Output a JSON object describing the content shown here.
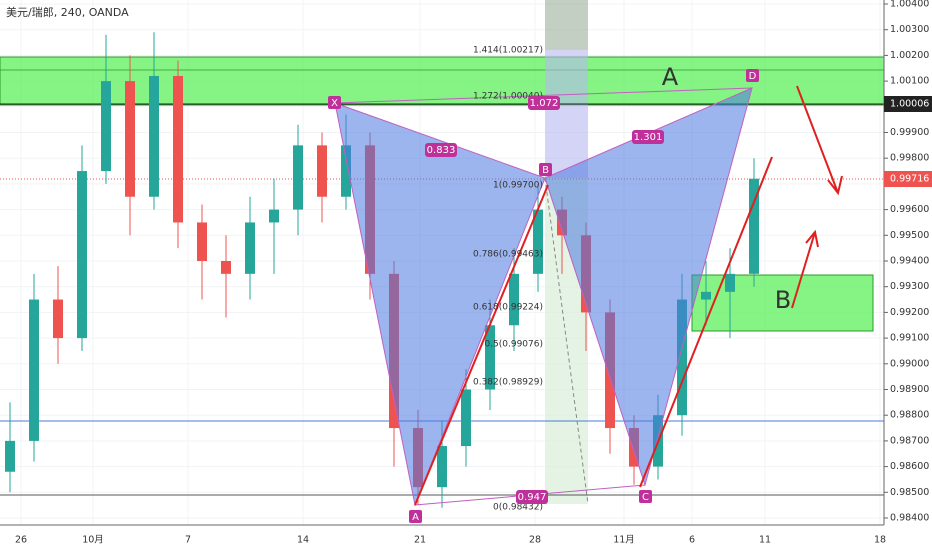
{
  "chart_data": {
    "type": "candlestick",
    "title": "美元/瑞郎, 240, OANDA",
    "up_color": "#26a69a",
    "down_color": "#ef5350",
    "ylim": [
      0.984,
      1.004
    ],
    "yticks": [
      {
        "value": 1.004,
        "label": "1.00400"
      },
      {
        "value": 1.003,
        "label": "1.00300"
      },
      {
        "value": 1.002,
        "label": "1.00200"
      },
      {
        "value": 1.001,
        "label": "1.00100"
      },
      {
        "value": 1.0,
        "label": "1.00000"
      },
      {
        "value": 0.999,
        "label": "0.99900"
      },
      {
        "value": 0.998,
        "label": "0.99800"
      },
      {
        "value": 0.997,
        "label": "0.99700"
      },
      {
        "value": 0.996,
        "label": "0.99600"
      },
      {
        "value": 0.995,
        "label": "0.99500"
      },
      {
        "value": 0.994,
        "label": "0.99400"
      },
      {
        "value": 0.993,
        "label": "0.99300"
      },
      {
        "value": 0.992,
        "label": "0.99200"
      },
      {
        "value": 0.991,
        "label": "0.99100"
      },
      {
        "value": 0.99,
        "label": "0.99000"
      },
      {
        "value": 0.989,
        "label": "0.98900"
      },
      {
        "value": 0.988,
        "label": "0.98800"
      },
      {
        "value": 0.987,
        "label": "0.98700"
      },
      {
        "value": 0.986,
        "label": "0.98600"
      },
      {
        "value": 0.985,
        "label": "0.98500"
      },
      {
        "value": 0.984,
        "label": "0.98400"
      }
    ],
    "x_labels": [
      "26",
      "10月",
      "7",
      "14",
      "21",
      "28",
      "11月",
      "6",
      "11",
      "18"
    ],
    "open": [
      0.9858,
      0.987,
      0.9925,
      0.991,
      0.9975,
      1.001,
      0.9965,
      1.0012,
      0.9955,
      0.994,
      0.9935,
      0.9955,
      0.996,
      0.9985,
      0.9965,
      0.9985,
      0.9935,
      0.9875,
      0.9852,
      0.9868,
      0.989,
      0.9915,
      0.9935,
      0.996,
      0.995,
      0.992,
      0.9875,
      0.986,
      0.988,
      0.9925,
      0.9928,
      0.9935
    ],
    "high": [
      0.9885,
      0.9935,
      0.9938,
      0.9985,
      1.0028,
      1.002,
      1.0029,
      1.0018,
      0.9962,
      0.995,
      0.9965,
      0.9972,
      0.9993,
      0.999,
      0.9997,
      0.999,
      0.994,
      0.9882,
      0.9878,
      0.9898,
      0.9925,
      0.9945,
      0.997,
      0.9965,
      0.9955,
      0.9925,
      0.988,
      0.9888,
      0.9935,
      0.994,
      0.9945,
      0.998
    ],
    "low": [
      0.985,
      0.9862,
      0.99,
      0.9905,
      0.997,
      0.995,
      0.996,
      0.9945,
      0.9925,
      0.9918,
      0.9925,
      0.9935,
      0.995,
      0.9955,
      0.996,
      0.9925,
      0.986,
      0.9845,
      0.9844,
      0.986,
      0.9882,
      0.9905,
      0.9928,
      0.9935,
      0.9905,
      0.9865,
      0.9853,
      0.9855,
      0.9872,
      0.9915,
      0.991,
      0.993
    ],
    "close": [
      0.987,
      0.9925,
      0.991,
      0.9975,
      1.001,
      0.9965,
      1.0012,
      0.9955,
      0.994,
      0.9935,
      0.9955,
      0.996,
      0.9985,
      0.9965,
      0.9985,
      0.9935,
      0.9875,
      0.9852,
      0.9868,
      0.989,
      0.9915,
      0.9935,
      0.996,
      0.995,
      0.992,
      0.9875,
      0.986,
      0.988,
      0.9925,
      0.9928,
      0.9935,
      0.9972
    ],
    "price_tags": [
      "1.00006",
      "0.99716"
    ],
    "pattern_points": [
      "X",
      "A",
      "B",
      "C",
      "D"
    ],
    "pattern_ratios": [
      "0.833",
      "1.072",
      "1.301",
      "0.947"
    ],
    "fib_labels": [
      "1.414(1.00217)",
      "1.272(1.00040)",
      "1(0.99700)",
      "0.786(0.99463)",
      "0.618(0.99224)",
      "0.5(0.99076)",
      "0.382(0.98929)",
      "0(0.98432)"
    ],
    "annotations": [
      "A",
      "B"
    ]
  }
}
